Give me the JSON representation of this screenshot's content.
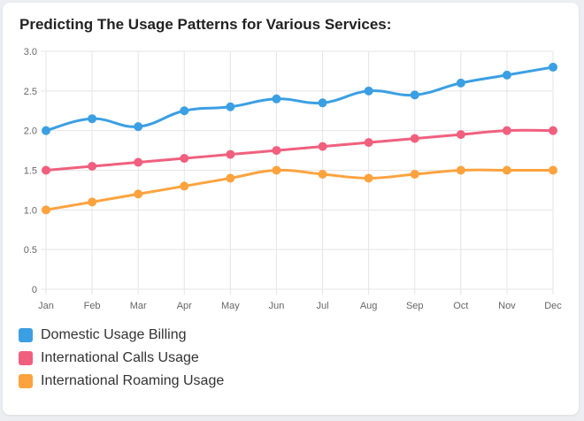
{
  "title": "Predicting The Usage Patterns for Various Services:",
  "colors": {
    "domestic": "#3b9fe3",
    "calls": "#f0607e",
    "roaming": "#fca33f",
    "grid": "#e5e5e5",
    "tick_text": "#666666"
  },
  "chart_data": {
    "type": "line",
    "title": "Predicting The Usage Patterns for Various Services:",
    "categories": [
      "Jan",
      "Feb",
      "Mar",
      "Apr",
      "May",
      "Jun",
      "Jul",
      "Aug",
      "Sep",
      "Oct",
      "Nov",
      "Dec"
    ],
    "y_ticks": [
      "0",
      "0.5",
      "1.0",
      "1.5",
      "2.0",
      "2.5",
      "3.0"
    ],
    "ylim": [
      0,
      3
    ],
    "grid": true,
    "legend_position": "bottom-left",
    "series": [
      {
        "name": "Domestic Usage Billing",
        "color": "#3b9fe3",
        "values": [
          2.0,
          2.15,
          2.05,
          2.25,
          2.3,
          2.4,
          2.35,
          2.5,
          2.45,
          2.6,
          2.7,
          2.8
        ]
      },
      {
        "name": "International Calls Usage",
        "color": "#f0607e",
        "values": [
          1.5,
          1.55,
          1.6,
          1.65,
          1.7,
          1.75,
          1.8,
          1.85,
          1.9,
          1.95,
          2.0,
          2.0
        ]
      },
      {
        "name": "International Roaming Usage",
        "color": "#fca33f",
        "values": [
          1.0,
          1.1,
          1.2,
          1.3,
          1.4,
          1.5,
          1.45,
          1.4,
          1.45,
          1.5,
          1.5,
          1.5
        ]
      }
    ]
  }
}
